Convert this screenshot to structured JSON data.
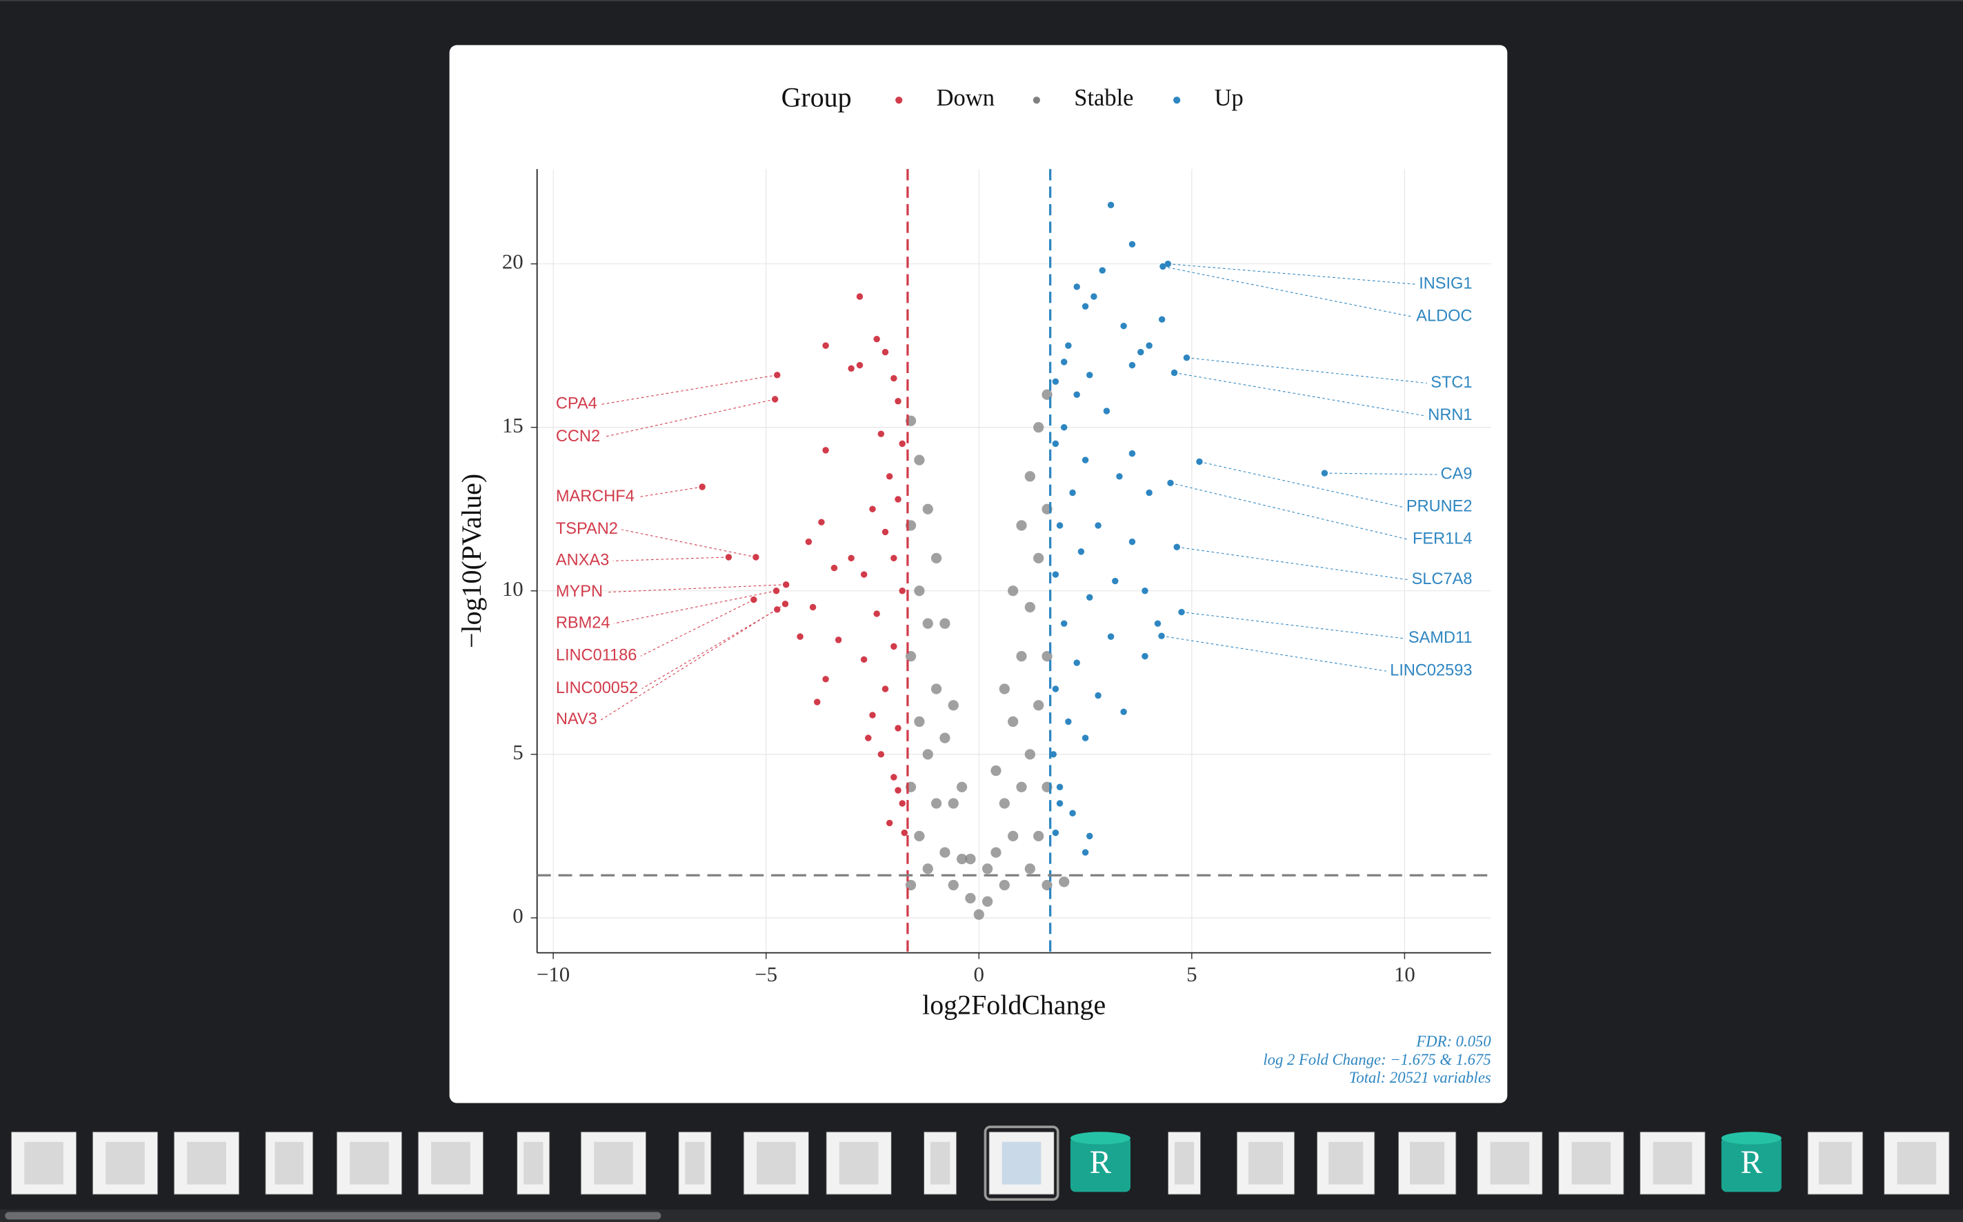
{
  "thumbnail_icons": [
    "R",
    "R"
  ],
  "chart_data": {
    "type": "scatter",
    "legend_title": "Group",
    "x_label": "log2FoldChange",
    "y_label": "−log10(PValue)",
    "xlim": [
      -10.38,
      12.03
    ],
    "ylim": [
      -1.07,
      22.9
    ],
    "xticks": [
      {
        "value": -10,
        "label": "−10"
      },
      {
        "value": -5,
        "label": "−5"
      },
      0,
      5,
      10
    ],
    "yticks": [
      0,
      5,
      10,
      15,
      20
    ],
    "grid": true,
    "legend": "top",
    "vlines": [
      {
        "value": -1.675,
        "color": "#d13b4a"
      },
      {
        "value": 1.675,
        "color": "#2e86c1"
      }
    ],
    "hline": {
      "value": 1.301,
      "color": "#808080"
    },
    "caption": [
      "FDR:  0.050",
      "log 2 Fold Change: −1.675 & 1.675",
      "Total: 20521 variables"
    ],
    "series": [
      {
        "name": "Down",
        "color": "#d13b4a",
        "x": [
          -2.8,
          -2.4,
          -2.2,
          -3.6,
          -3.0,
          -2.8,
          -2.0,
          -1.9,
          -3.6,
          -2.3,
          -1.8,
          -2.1,
          -1.9,
          -2.5,
          -3.7,
          -4.0,
          -2.2,
          -3.0,
          -2.0,
          -2.7,
          -3.4,
          -1.8,
          -3.9,
          -2.4,
          -4.2,
          -3.3,
          -2.0,
          -2.7,
          -3.6,
          -2.2,
          -3.8,
          -2.5,
          -1.9,
          -2.3,
          -2.0,
          -1.8,
          -1.75,
          -2.1,
          -1.9,
          -2.6
        ],
        "y": [
          19.0,
          17.7,
          17.3,
          17.5,
          16.8,
          16.9,
          16.5,
          15.8,
          14.3,
          14.8,
          14.5,
          13.5,
          12.8,
          12.5,
          12.1,
          11.5,
          11.8,
          11.0,
          11.0,
          10.5,
          10.7,
          10.0,
          9.5,
          9.3,
          8.6,
          8.5,
          8.3,
          7.9,
          7.3,
          7.0,
          6.6,
          6.2,
          5.8,
          5.0,
          4.3,
          3.5,
          2.6,
          2.9,
          3.9,
          5.5
        ]
      },
      {
        "name": "Stable",
        "color": "#808080",
        "x": [
          -1.6,
          -1.6,
          -1.6,
          -1.6,
          -1.6,
          -1.4,
          -1.4,
          -1.4,
          -1.4,
          -1.2,
          -1.2,
          -1.2,
          -1.2,
          -1.0,
          -1.0,
          -1.0,
          -0.8,
          -0.8,
          -0.8,
          -0.6,
          -0.6,
          -0.6,
          -0.4,
          -0.4,
          -0.2,
          -0.2,
          0,
          0.2,
          0.2,
          0.4,
          0.4,
          0.6,
          0.6,
          0.6,
          0.8,
          0.8,
          0.8,
          1.0,
          1.0,
          1.0,
          1.2,
          1.2,
          1.2,
          1.2,
          1.4,
          1.4,
          1.4,
          1.4,
          1.6,
          1.6,
          1.6,
          1.6,
          1.6,
          2.0
        ],
        "y": [
          15.2,
          12,
          8,
          4,
          1,
          14,
          10,
          6,
          2.5,
          12.5,
          9,
          5,
          1.5,
          11,
          7,
          3.5,
          9,
          5.5,
          2,
          6.5,
          3.5,
          1,
          4,
          1.8,
          1.8,
          0.6,
          0.1,
          1.5,
          0.5,
          4.5,
          2,
          7,
          3.5,
          1,
          10,
          6,
          2.5,
          12,
          8,
          4,
          13.5,
          9.5,
          5,
          1.5,
          15,
          11,
          6.5,
          2.5,
          16,
          12.5,
          8,
          4,
          1,
          1.1
        ]
      },
      {
        "name": "Up",
        "color": "#2e86c1",
        "x": [
          3.1,
          3.6,
          2.9,
          2.3,
          2.7,
          2.5,
          4.3,
          3.4,
          2.0,
          2.1,
          4.0,
          3.8,
          3.6,
          2.6,
          1.8,
          2.3,
          3.0,
          2.0,
          1.8,
          3.6,
          2.5,
          3.3,
          4.0,
          2.2,
          1.9,
          2.8,
          3.6,
          2.4,
          1.8,
          3.2,
          3.9,
          2.6,
          4.2,
          2.0,
          3.1,
          3.9,
          2.3,
          1.8,
          2.8,
          3.4,
          2.1,
          1.75,
          2.5,
          1.9,
          2.2,
          1.8,
          2.6,
          2.5,
          1.9
        ],
        "y": [
          21.8,
          20.6,
          19.8,
          19.3,
          19.0,
          18.7,
          18.3,
          18.1,
          17.0,
          17.5,
          17.5,
          17.3,
          16.9,
          16.6,
          16.4,
          16.0,
          15.5,
          15.0,
          14.5,
          14.2,
          14.0,
          13.5,
          13.0,
          13.0,
          12.0,
          12.0,
          11.5,
          11.2,
          10.5,
          10.3,
          10.0,
          9.8,
          9.0,
          9.0,
          8.6,
          8.0,
          7.8,
          7.0,
          6.8,
          6.3,
          6.0,
          5.0,
          5.5,
          4.0,
          3.2,
          2.6,
          2.5,
          2.0,
          3.5
        ]
      }
    ],
    "annotations": [
      {
        "text": "CPA4",
        "group": "Down",
        "x": -4.74,
        "y": 16.6
      },
      {
        "text": "CCN2",
        "group": "Down",
        "x": -4.79,
        "y": 15.86
      },
      {
        "text": "MARCHF4",
        "group": "Down",
        "x": -6.5,
        "y": 13.18
      },
      {
        "text": "TSPAN2",
        "group": "Down",
        "x": -5.24,
        "y": 11.03
      },
      {
        "text": "ANXA3",
        "group": "Down",
        "x": -5.88,
        "y": 11.03
      },
      {
        "text": "MYPN",
        "group": "Down",
        "x": -4.53,
        "y": 10.19
      },
      {
        "text": "RBM24",
        "group": "Down",
        "x": -4.76,
        "y": 10.0
      },
      {
        "text": "LINC01186",
        "group": "Down",
        "x": -5.29,
        "y": 9.73
      },
      {
        "text": "LINC00052",
        "group": "Down",
        "x": -4.74,
        "y": 9.43
      },
      {
        "text": "NAV3",
        "group": "Down",
        "x": -4.55,
        "y": 9.6
      },
      {
        "text": "INSIG1",
        "group": "Up",
        "x": 4.44,
        "y": 20.0
      },
      {
        "text": "ALDOC",
        "group": "Up",
        "x": 4.32,
        "y": 19.92
      },
      {
        "text": "STC1",
        "group": "Up",
        "x": 4.88,
        "y": 17.13
      },
      {
        "text": "NRN1",
        "group": "Up",
        "x": 4.59,
        "y": 16.67
      },
      {
        "text": "CA9",
        "group": "Up",
        "x": 8.12,
        "y": 13.6
      },
      {
        "text": "PRUNE2",
        "group": "Up",
        "x": 5.18,
        "y": 13.95
      },
      {
        "text": "FER1L4",
        "group": "Up",
        "x": 4.5,
        "y": 13.3
      },
      {
        "text": "SLC7A8",
        "group": "Up",
        "x": 4.65,
        "y": 11.34
      },
      {
        "text": "SAMD11",
        "group": "Up",
        "x": 4.76,
        "y": 9.35
      },
      {
        "text": "LINC02593",
        "group": "Up",
        "x": 4.29,
        "y": 8.62
      }
    ]
  }
}
